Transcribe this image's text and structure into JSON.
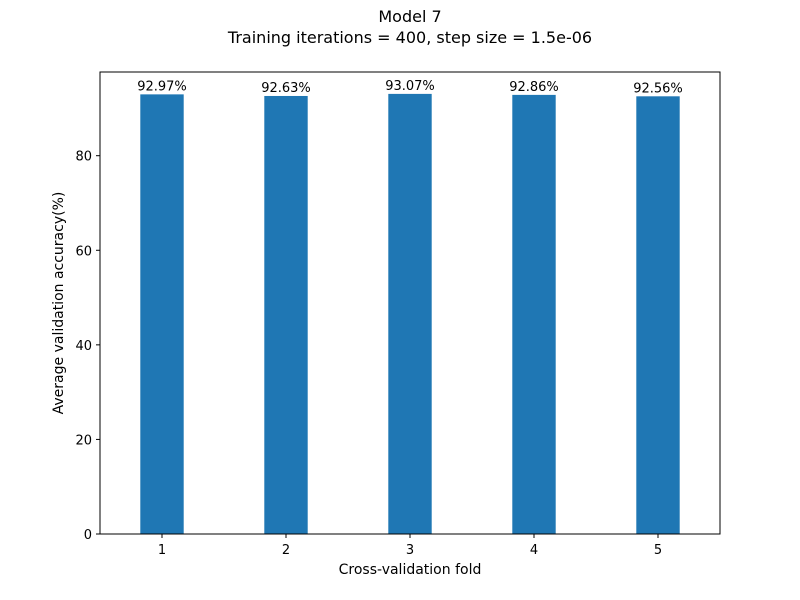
{
  "chart_data": {
    "type": "bar",
    "title": "Model 7",
    "subtitle": "Training iterations = 400, step size = 1.5e-06",
    "xlabel": "Cross-validation fold",
    "ylabel": "Average validation accuracy(%)",
    "categories": [
      "1",
      "2",
      "3",
      "4",
      "5"
    ],
    "values": [
      92.97,
      92.63,
      93.07,
      92.86,
      92.56
    ],
    "data_labels": [
      "92.97%",
      "92.63%",
      "93.07%",
      "92.86%",
      "92.56%"
    ],
    "yticks": [
      0,
      20,
      40,
      60,
      80
    ],
    "ytick_labels": [
      "0",
      "20",
      "40",
      "60",
      "80"
    ],
    "ylim": [
      0,
      97.7
    ],
    "grid": false,
    "legend": "none",
    "bar_color": "#1f77b4"
  }
}
